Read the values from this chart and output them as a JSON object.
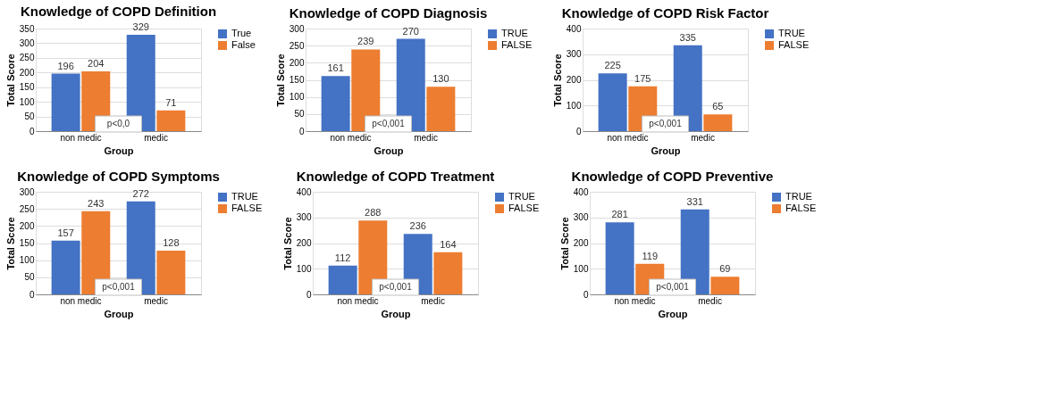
{
  "chart_data": [
    {
      "type": "bar",
      "title": "Knowledge of COPD Definition",
      "xlabel": "Group",
      "ylabel": "Total Score",
      "categories": [
        "non medic",
        "medic"
      ],
      "series": [
        {
          "name": "True",
          "color": "#4472c4",
          "values": [
            196,
            329
          ]
        },
        {
          "name": "False",
          "color": "#ed7d31",
          "values": [
            204,
            71
          ]
        }
      ],
      "ylim": [
        0,
        350
      ],
      "yticks": [
        0,
        50,
        100,
        150,
        200,
        250,
        300,
        350
      ],
      "grid": "y",
      "legend": "right",
      "data_labels": true,
      "annotations": [
        "p<0,0"
      ]
    },
    {
      "type": "bar",
      "title": "Knowledge of COPD Diagnosis",
      "xlabel": "Group",
      "ylabel": "Total Score",
      "categories": [
        "non medic",
        "medic"
      ],
      "series": [
        {
          "name": "TRUE",
          "color": "#4472c4",
          "values": [
            161,
            270
          ]
        },
        {
          "name": "FALSE",
          "color": "#ed7d31",
          "values": [
            239,
            130
          ]
        }
      ],
      "ylim": [
        0,
        300
      ],
      "yticks": [
        0,
        50,
        100,
        150,
        200,
        250,
        300
      ],
      "grid": "y",
      "legend": "right",
      "data_labels": true,
      "annotations": [
        "p<0,001"
      ]
    },
    {
      "type": "bar",
      "title": "Knowledge of COPD Risk Factor",
      "xlabel": "Group",
      "ylabel": "Total Score",
      "categories": [
        "non medic",
        "medic"
      ],
      "series": [
        {
          "name": "TRUE",
          "color": "#4472c4",
          "values": [
            225,
            335
          ]
        },
        {
          "name": "FALSE",
          "color": "#ed7d31",
          "values": [
            175,
            65
          ]
        }
      ],
      "ylim": [
        0,
        400
      ],
      "yticks": [
        0,
        100,
        200,
        300,
        400
      ],
      "grid": "y",
      "legend": "right",
      "data_labels": true,
      "annotations": [
        "p<0,001"
      ]
    },
    {
      "type": "bar",
      "title": "Knowledge of COPD Symptoms",
      "xlabel": "Group",
      "ylabel": "Total Score",
      "categories": [
        "non medic",
        "medic"
      ],
      "series": [
        {
          "name": "TRUE",
          "color": "#4472c4",
          "values": [
            157,
            272
          ]
        },
        {
          "name": "FALSE",
          "color": "#ed7d31",
          "values": [
            243,
            128
          ]
        }
      ],
      "ylim": [
        0,
        300
      ],
      "yticks": [
        0,
        50,
        100,
        150,
        200,
        250,
        300
      ],
      "grid": "y",
      "legend": "right",
      "data_labels": true,
      "annotations": [
        "p<0,001"
      ]
    },
    {
      "type": "bar",
      "title": "Knowledge of COPD Treatment",
      "xlabel": "Group",
      "ylabel": "Total Score",
      "categories": [
        "non medic",
        "medic"
      ],
      "series": [
        {
          "name": "TRUE",
          "color": "#4472c4",
          "values": [
            112,
            236
          ]
        },
        {
          "name": "FALSE",
          "color": "#ed7d31",
          "values": [
            288,
            164
          ]
        }
      ],
      "ylim": [
        0,
        400
      ],
      "yticks": [
        0,
        100,
        200,
        300,
        400
      ],
      "grid": "y",
      "legend": "right",
      "data_labels": true,
      "annotations": [
        "p<0,001"
      ]
    },
    {
      "type": "bar",
      "title": "Knowledge of COPD Preventive",
      "xlabel": "Group",
      "ylabel": "Total Score",
      "categories": [
        "non medic",
        "medic"
      ],
      "series": [
        {
          "name": "TRUE",
          "color": "#4472c4",
          "values": [
            281,
            331
          ]
        },
        {
          "name": "FALSE",
          "color": "#ed7d31",
          "values": [
            119,
            69
          ]
        }
      ],
      "ylim": [
        0,
        400
      ],
      "yticks": [
        0,
        100,
        200,
        300,
        400
      ],
      "grid": "y",
      "legend": "right",
      "data_labels": true,
      "annotations": [
        "p<0,001"
      ]
    }
  ]
}
